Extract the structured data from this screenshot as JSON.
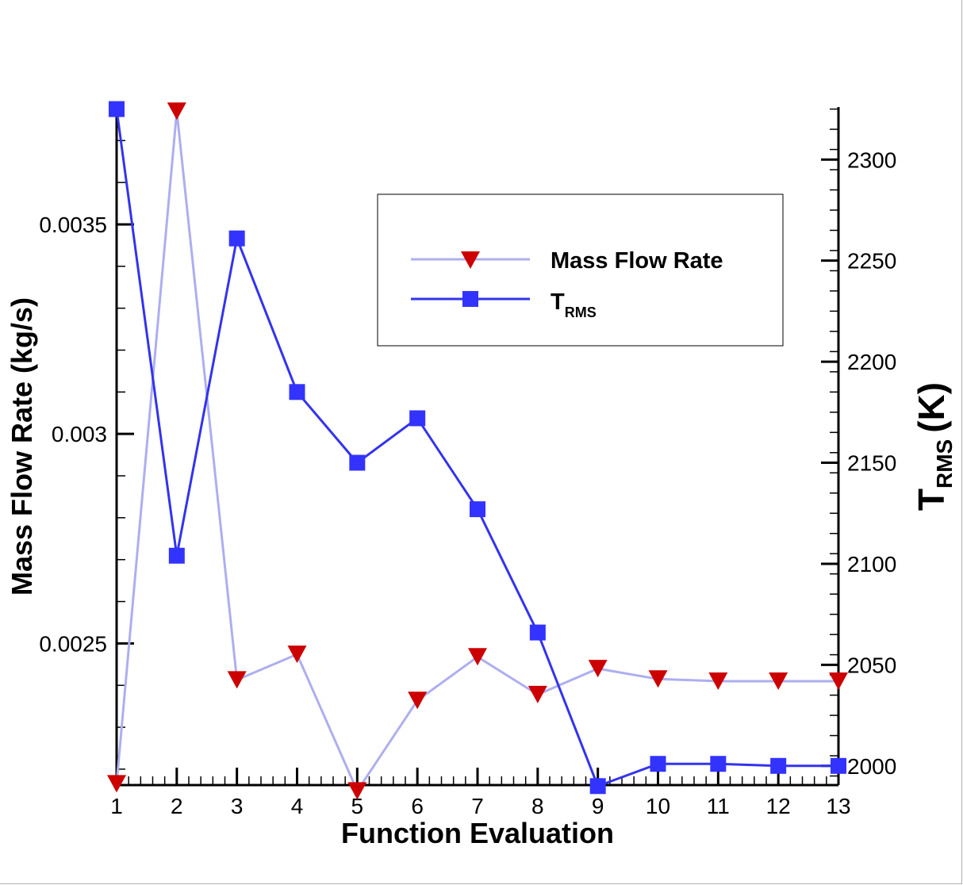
{
  "chart_data": {
    "type": "line",
    "xlabel": "Function Evaluation",
    "ylabel_left": "Mass Flow Rate (kg/s)",
    "ylabel_right_main": "T",
    "ylabel_right_sub": "RMS",
    "ylabel_right_unit": "(K)",
    "x": [
      1,
      2,
      3,
      4,
      5,
      6,
      7,
      8,
      9,
      10,
      11,
      12,
      13
    ],
    "x_ticks": [
      "1",
      "2",
      "3",
      "4",
      "5",
      "6",
      "7",
      "8",
      "9",
      "10",
      "11",
      "12",
      "13"
    ],
    "xlim": [
      1,
      13
    ],
    "ylim_left": [
      0.002162,
      0.00378
    ],
    "ylim_right": [
      1990.5,
      2326
    ],
    "left_ticks": [
      "0.0025",
      "0.003",
      "0.0035"
    ],
    "left_tick_values": [
      0.0025,
      0.003,
      0.0035
    ],
    "right_ticks": [
      "2000",
      "2050",
      "2100",
      "2150",
      "2200",
      "2250",
      "2300"
    ],
    "right_tick_values": [
      2000,
      2050,
      2100,
      2150,
      2200,
      2250,
      2300
    ],
    "series": [
      {
        "name": "Mass Flow Rate",
        "axis": "left",
        "marker": "triangle-down",
        "line_color": "#aeaef0",
        "marker_color": "#cc0000",
        "values": [
          0.002165,
          0.00377,
          0.002413,
          0.002474,
          0.002148,
          0.002364,
          0.002468,
          0.002378,
          0.00244,
          0.002415,
          0.00241,
          0.00241,
          0.00241
        ]
      },
      {
        "name": "T",
        "name_sub": "RMS",
        "axis": "right",
        "marker": "square",
        "line_color": "#3333ee",
        "marker_color": "#3333ff",
        "values": [
          2325,
          2104,
          2261,
          2185,
          2150,
          2172,
          2127,
          2066,
          1990,
          2001,
          2001,
          2000,
          2000
        ]
      }
    ],
    "legend_placement": "upper-right",
    "grid": false
  }
}
